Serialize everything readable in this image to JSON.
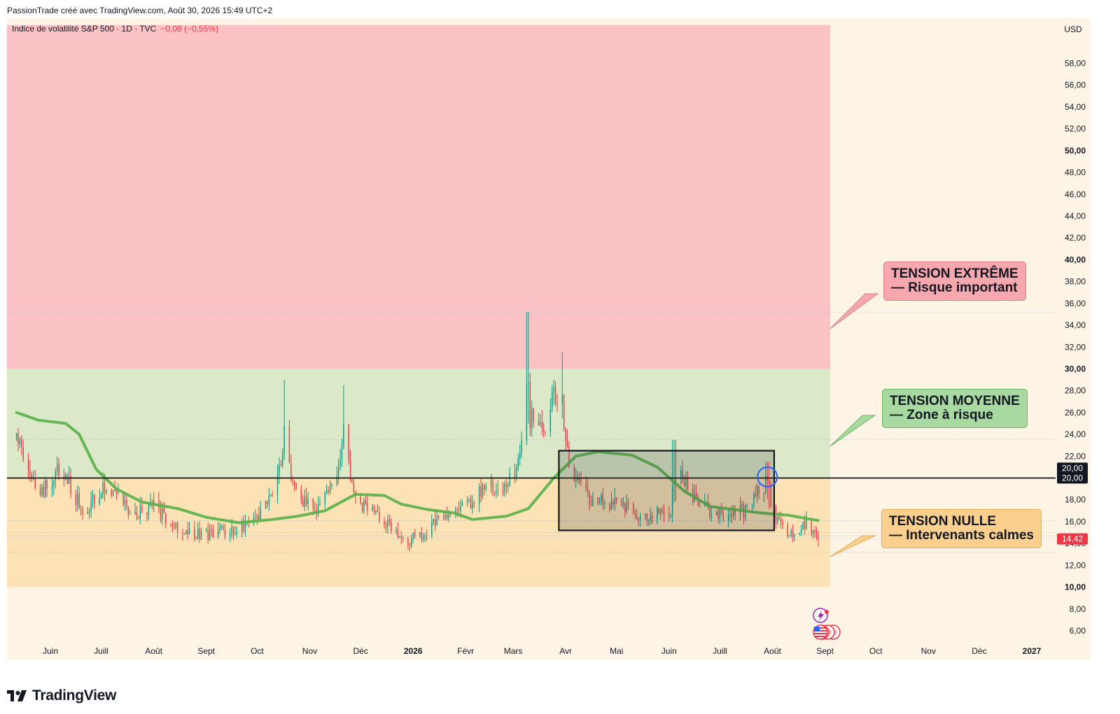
{
  "header": {
    "text": "PassionTrade créé avec TradingView.com, Août 30, 2026 15:49 UTC+2"
  },
  "legend": {
    "symbol": "Indice de volatilité S&P 500 · 1D · TVC",
    "change": "−0,08 (−0,55%)"
  },
  "brand": {
    "name": "TradingView"
  },
  "callouts": {
    "extreme": {
      "line1": "TENSION EXTRÊME",
      "line2": "— Risque important"
    },
    "moyenne": {
      "line1": "TENSION MOYENNE",
      "line2": "— Zone à risque"
    },
    "nulle": {
      "line1": "TENSION NULLE",
      "line2": "— Intervenants calmes"
    }
  },
  "colors": {
    "up": "#089981",
    "down": "#f23645",
    "zone_extreme": "#fbc2c6",
    "zone_moyenne": "#dbe9c8",
    "zone_nulle": "#fde2b6",
    "ma": "#5cb14b",
    "bg": "#fdf4e6"
  },
  "chart_data": {
    "type": "candlestick",
    "title": "",
    "currency": "USD",
    "y_ticks": [
      "6,00",
      "8,00",
      "10,00",
      "12,00",
      "14,00",
      "16,00",
      "18,00",
      "20,00",
      "22,00",
      "24,00",
      "26,00",
      "28,00",
      "30,00",
      "32,00",
      "34,00",
      "36,00",
      "38,00",
      "40,00",
      "42,00",
      "44,00",
      "46,00",
      "48,00",
      "50,00",
      "52,00",
      "54,00",
      "56,00",
      "58,00"
    ],
    "y_bold_ticks": [
      "10,00",
      "30,00",
      "40,00",
      "50,00"
    ],
    "ylim": [
      4.6,
      61.5
    ],
    "x_labels": [
      {
        "label": "Juin",
        "date": "2025-06-01"
      },
      {
        "label": "Juill",
        "date": "2025-07-01"
      },
      {
        "label": "Août",
        "date": "2025-08-01"
      },
      {
        "label": "Sept",
        "date": "2025-09-01"
      },
      {
        "label": "Oct",
        "date": "2025-10-01"
      },
      {
        "label": "Nov",
        "date": "2025-11-01"
      },
      {
        "label": "Déc",
        "date": "2025-12-01"
      },
      {
        "label": "2026",
        "date": "2026-01-01",
        "bold": true
      },
      {
        "label": "Févr",
        "date": "2026-02-01"
      },
      {
        "label": "Mars",
        "date": "2026-03-01"
      },
      {
        "label": "Avr",
        "date": "2026-04-01"
      },
      {
        "label": "Mai",
        "date": "2026-05-01"
      },
      {
        "label": "Juin",
        "date": "2026-06-01"
      },
      {
        "label": "Juill",
        "date": "2026-07-01"
      },
      {
        "label": "Août",
        "date": "2026-08-01"
      },
      {
        "label": "Sept",
        "date": "2026-09-01"
      },
      {
        "label": "Oct",
        "date": "2026-10-01"
      },
      {
        "label": "Nov",
        "date": "2026-11-01"
      },
      {
        "label": "Déc",
        "date": "2026-12-01"
      },
      {
        "label": "2027",
        "date": "2027-01-01",
        "bold": true
      }
    ],
    "zones": [
      {
        "name": "TENSION EXTRÊME",
        "from": 30,
        "to": 61.5,
        "color": "#fbc2c6"
      },
      {
        "name": "TENSION MOYENNE",
        "from": 20,
        "to": 30,
        "color": "#dbe9c8"
      },
      {
        "name": "TENSION NULLE",
        "from": 10,
        "to": 20,
        "color": "#fde2b6"
      }
    ],
    "hline": 20,
    "dotted_levels": [
      35.2,
      23.5,
      16.1,
      15.0,
      14.7,
      14.4,
      13.2
    ],
    "price_tags": [
      {
        "label": "20,00",
        "value": 20.9,
        "color": "#131722"
      },
      {
        "label": "20,00",
        "value": 20.0,
        "color": "#131722"
      },
      {
        "label": "14,42",
        "value": 14.42,
        "color": "#f23645"
      }
    ],
    "last_price": "14,42",
    "rectangle": {
      "start": "2026-03-28",
      "end": "2026-08-02",
      "top": 22.5,
      "bottom": 15.2
    },
    "circle": {
      "date": "2026-07-29",
      "value": 20.1
    },
    "keypoints": [
      [
        "2025-05-12",
        23.5
      ],
      [
        "2025-05-26",
        18.5
      ],
      [
        "2025-06-07",
        21.0
      ],
      [
        "2025-06-20",
        17.0
      ],
      [
        "2025-07-05",
        19.5
      ],
      [
        "2025-07-20",
        16.5
      ],
      [
        "2025-08-01",
        17.5
      ],
      [
        "2025-08-10",
        16.0
      ],
      [
        "2025-08-20",
        15.0
      ],
      [
        "2025-09-05",
        14.8
      ],
      [
        "2025-09-20",
        15.5
      ],
      [
        "2025-10-01",
        16.0
      ],
      [
        "2025-10-10",
        19.0
      ],
      [
        "2025-10-17",
        22.5
      ],
      [
        "2025-10-25",
        18.0
      ],
      [
        "2025-11-05",
        17.0
      ],
      [
        "2025-11-15",
        19.5
      ],
      [
        "2025-11-21",
        23.0
      ],
      [
        "2025-11-28",
        18.0
      ],
      [
        "2025-12-05",
        17.0
      ],
      [
        "2025-12-15",
        16.0
      ],
      [
        "2025-12-26",
        14.0
      ],
      [
        "2026-01-06",
        14.8
      ],
      [
        "2026-01-18",
        16.5
      ],
      [
        "2026-01-28",
        17.0
      ],
      [
        "2026-02-05",
        18.0
      ],
      [
        "2026-02-15",
        19.5
      ],
      [
        "2026-02-25",
        19.0
      ],
      [
        "2026-03-04",
        21.5
      ],
      [
        "2026-03-08",
        25.0
      ],
      [
        "2026-03-15",
        26.0
      ],
      [
        "2026-03-20",
        24.0
      ],
      [
        "2026-03-25",
        28.5
      ],
      [
        "2026-03-30",
        25.5
      ],
      [
        "2026-04-05",
        20.0
      ],
      [
        "2026-04-15",
        18.0
      ],
      [
        "2026-05-01",
        17.5
      ],
      [
        "2026-05-20",
        16.5
      ],
      [
        "2026-06-03",
        17.0
      ],
      [
        "2026-06-08",
        20.0
      ],
      [
        "2026-06-20",
        17.5
      ],
      [
        "2026-07-05",
        16.5
      ],
      [
        "2026-07-15",
        17.0
      ],
      [
        "2026-07-28",
        19.5
      ],
      [
        "2026-08-03",
        16.0
      ],
      [
        "2026-08-12",
        15.0
      ],
      [
        "2026-08-20",
        15.8
      ],
      [
        "2026-08-28",
        14.42
      ]
    ],
    "spikes": [
      {
        "date": "2026-03-09",
        "high": 35.2
      },
      {
        "date": "2026-03-29",
        "high": 31.5
      },
      {
        "date": "2025-10-18",
        "high": 29.0
      },
      {
        "date": "2025-11-22",
        "high": 28.5
      },
      {
        "date": "2026-06-04",
        "high": 23.5
      },
      {
        "date": "2026-07-29",
        "high": 21.5
      }
    ],
    "series": [
      {
        "name": "",
        "type": "moving_average",
        "points": [
          [
            "2025-05-12",
            26.0
          ],
          [
            "2025-05-25",
            25.3
          ],
          [
            "2025-06-10",
            25.0
          ],
          [
            "2025-06-18",
            24.0
          ],
          [
            "2025-06-28",
            20.8
          ],
          [
            "2025-07-10",
            19.0
          ],
          [
            "2025-07-25",
            17.8
          ],
          [
            "2025-08-15",
            17.2
          ],
          [
            "2025-09-01",
            16.4
          ],
          [
            "2025-09-20",
            15.9
          ],
          [
            "2025-10-10",
            16.2
          ],
          [
            "2025-10-25",
            16.5
          ],
          [
            "2025-11-10",
            17.0
          ],
          [
            "2025-11-28",
            18.5
          ],
          [
            "2025-12-15",
            18.4
          ],
          [
            "2025-12-25",
            17.6
          ],
          [
            "2026-01-10",
            17.1
          ],
          [
            "2026-01-25",
            16.8
          ],
          [
            "2026-02-05",
            16.2
          ],
          [
            "2026-02-25",
            16.5
          ],
          [
            "2026-03-10",
            17.2
          ],
          [
            "2026-03-25",
            20.0
          ],
          [
            "2026-04-07",
            22.0
          ],
          [
            "2026-04-20",
            22.4
          ],
          [
            "2026-05-10",
            22.1
          ],
          [
            "2026-05-25",
            21.0
          ],
          [
            "2026-06-10",
            18.8
          ],
          [
            "2026-06-25",
            17.4
          ],
          [
            "2026-07-10",
            17.1
          ],
          [
            "2026-07-25",
            16.8
          ],
          [
            "2026-08-10",
            16.6
          ],
          [
            "2026-08-28",
            16.1
          ]
        ]
      }
    ],
    "events": [
      {
        "date": "2026-08-29",
        "type": "dividend"
      },
      {
        "date": "2026-08-30",
        "type": "economic-event"
      }
    ]
  }
}
